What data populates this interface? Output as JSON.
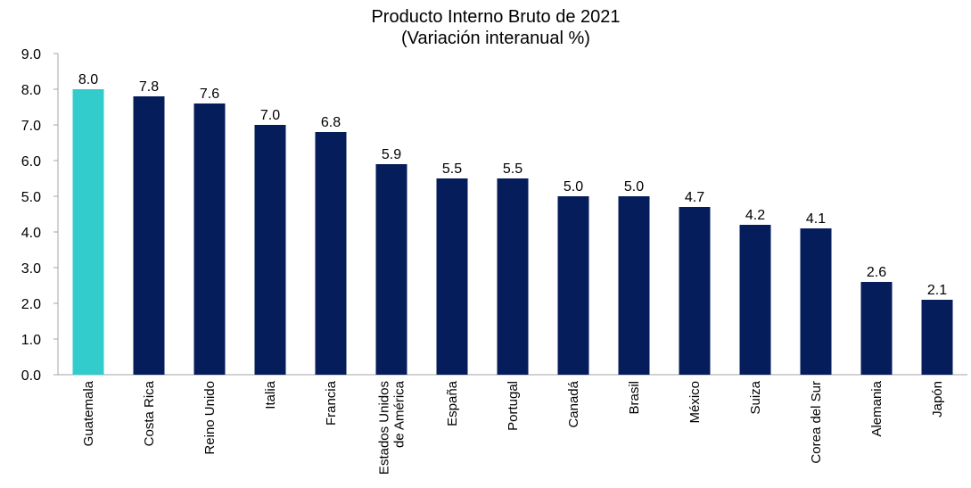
{
  "chart_data": {
    "type": "bar",
    "title": "Producto Interno Bruto de 2021",
    "subtitle": "(Variación interanual %)",
    "categories": [
      [
        "Guatemala"
      ],
      [
        "Costa Rica"
      ],
      [
        "Reino Unido"
      ],
      [
        "Italia"
      ],
      [
        "Francia"
      ],
      [
        "Estados Unidos",
        "de América"
      ],
      [
        "España"
      ],
      [
        "Portugal"
      ],
      [
        "Canadá"
      ],
      [
        "Brasil"
      ],
      [
        "México"
      ],
      [
        "Suiza"
      ],
      [
        "Corea del Sur"
      ],
      [
        "Alemania"
      ],
      [
        "Japón"
      ]
    ],
    "values": [
      8.0,
      7.8,
      7.6,
      7.0,
      6.8,
      5.9,
      5.5,
      5.5,
      5.0,
      5.0,
      4.7,
      4.2,
      4.1,
      2.6,
      2.1
    ],
    "value_labels": [
      "8.0",
      "7.8",
      "7.6",
      "7.0",
      "6.8",
      "5.9",
      "5.5",
      "5.5",
      "5.0",
      "5.0",
      "4.7",
      "4.2",
      "4.1",
      "2.6",
      "2.1"
    ],
    "highlight_index": 0,
    "ylim": [
      0,
      9
    ],
    "y_ticks": [
      "0.0",
      "1.0",
      "2.0",
      "3.0",
      "4.0",
      "5.0",
      "6.0",
      "7.0",
      "8.0",
      "9.0"
    ],
    "y_tick_values": [
      0,
      1,
      2,
      3,
      4,
      5,
      6,
      7,
      8,
      9
    ],
    "grid": false,
    "legend": "none",
    "colors": {
      "bar": "#061d5b",
      "highlight": "#33cccc",
      "axis": "#a6a6a6",
      "text": "#000000"
    }
  }
}
